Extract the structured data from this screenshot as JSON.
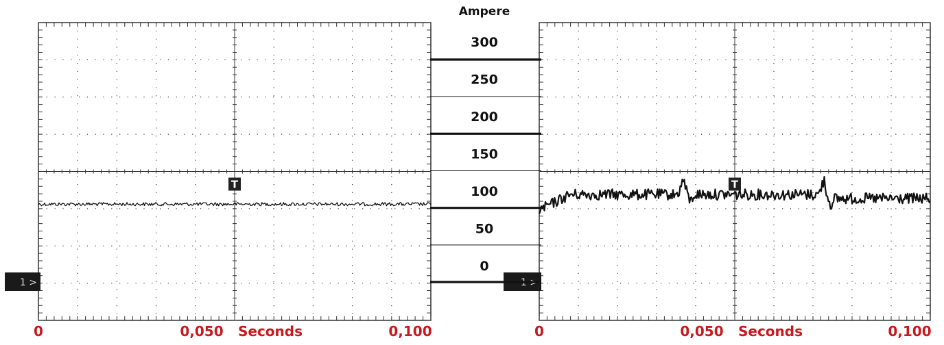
{
  "chart_data": {
    "type": "line",
    "ylabel": "Ampere",
    "y_ticks": [
      "300",
      "250",
      "200",
      "150",
      "100",
      "50",
      "0"
    ],
    "y_range": [
      0,
      300
    ],
    "time_unit": "Seconds",
    "trigger_marker": "T",
    "channel_marker": "1 >",
    "label_color": "#c8191e",
    "panels": [
      {
        "x_ticks": [
          "0",
          "0,050",
          "0,100"
        ],
        "xlim": [
          0,
          0.1
        ],
        "mean_current": 105,
        "spikes": [],
        "step_down": null
      },
      {
        "x_ticks": [
          "0",
          "0,050",
          "0,100"
        ],
        "xlim": [
          0,
          0.1
        ],
        "mean_current": 118,
        "spikes": [
          0.037,
          0.073
        ],
        "step_down": 0.073
      }
    ]
  }
}
